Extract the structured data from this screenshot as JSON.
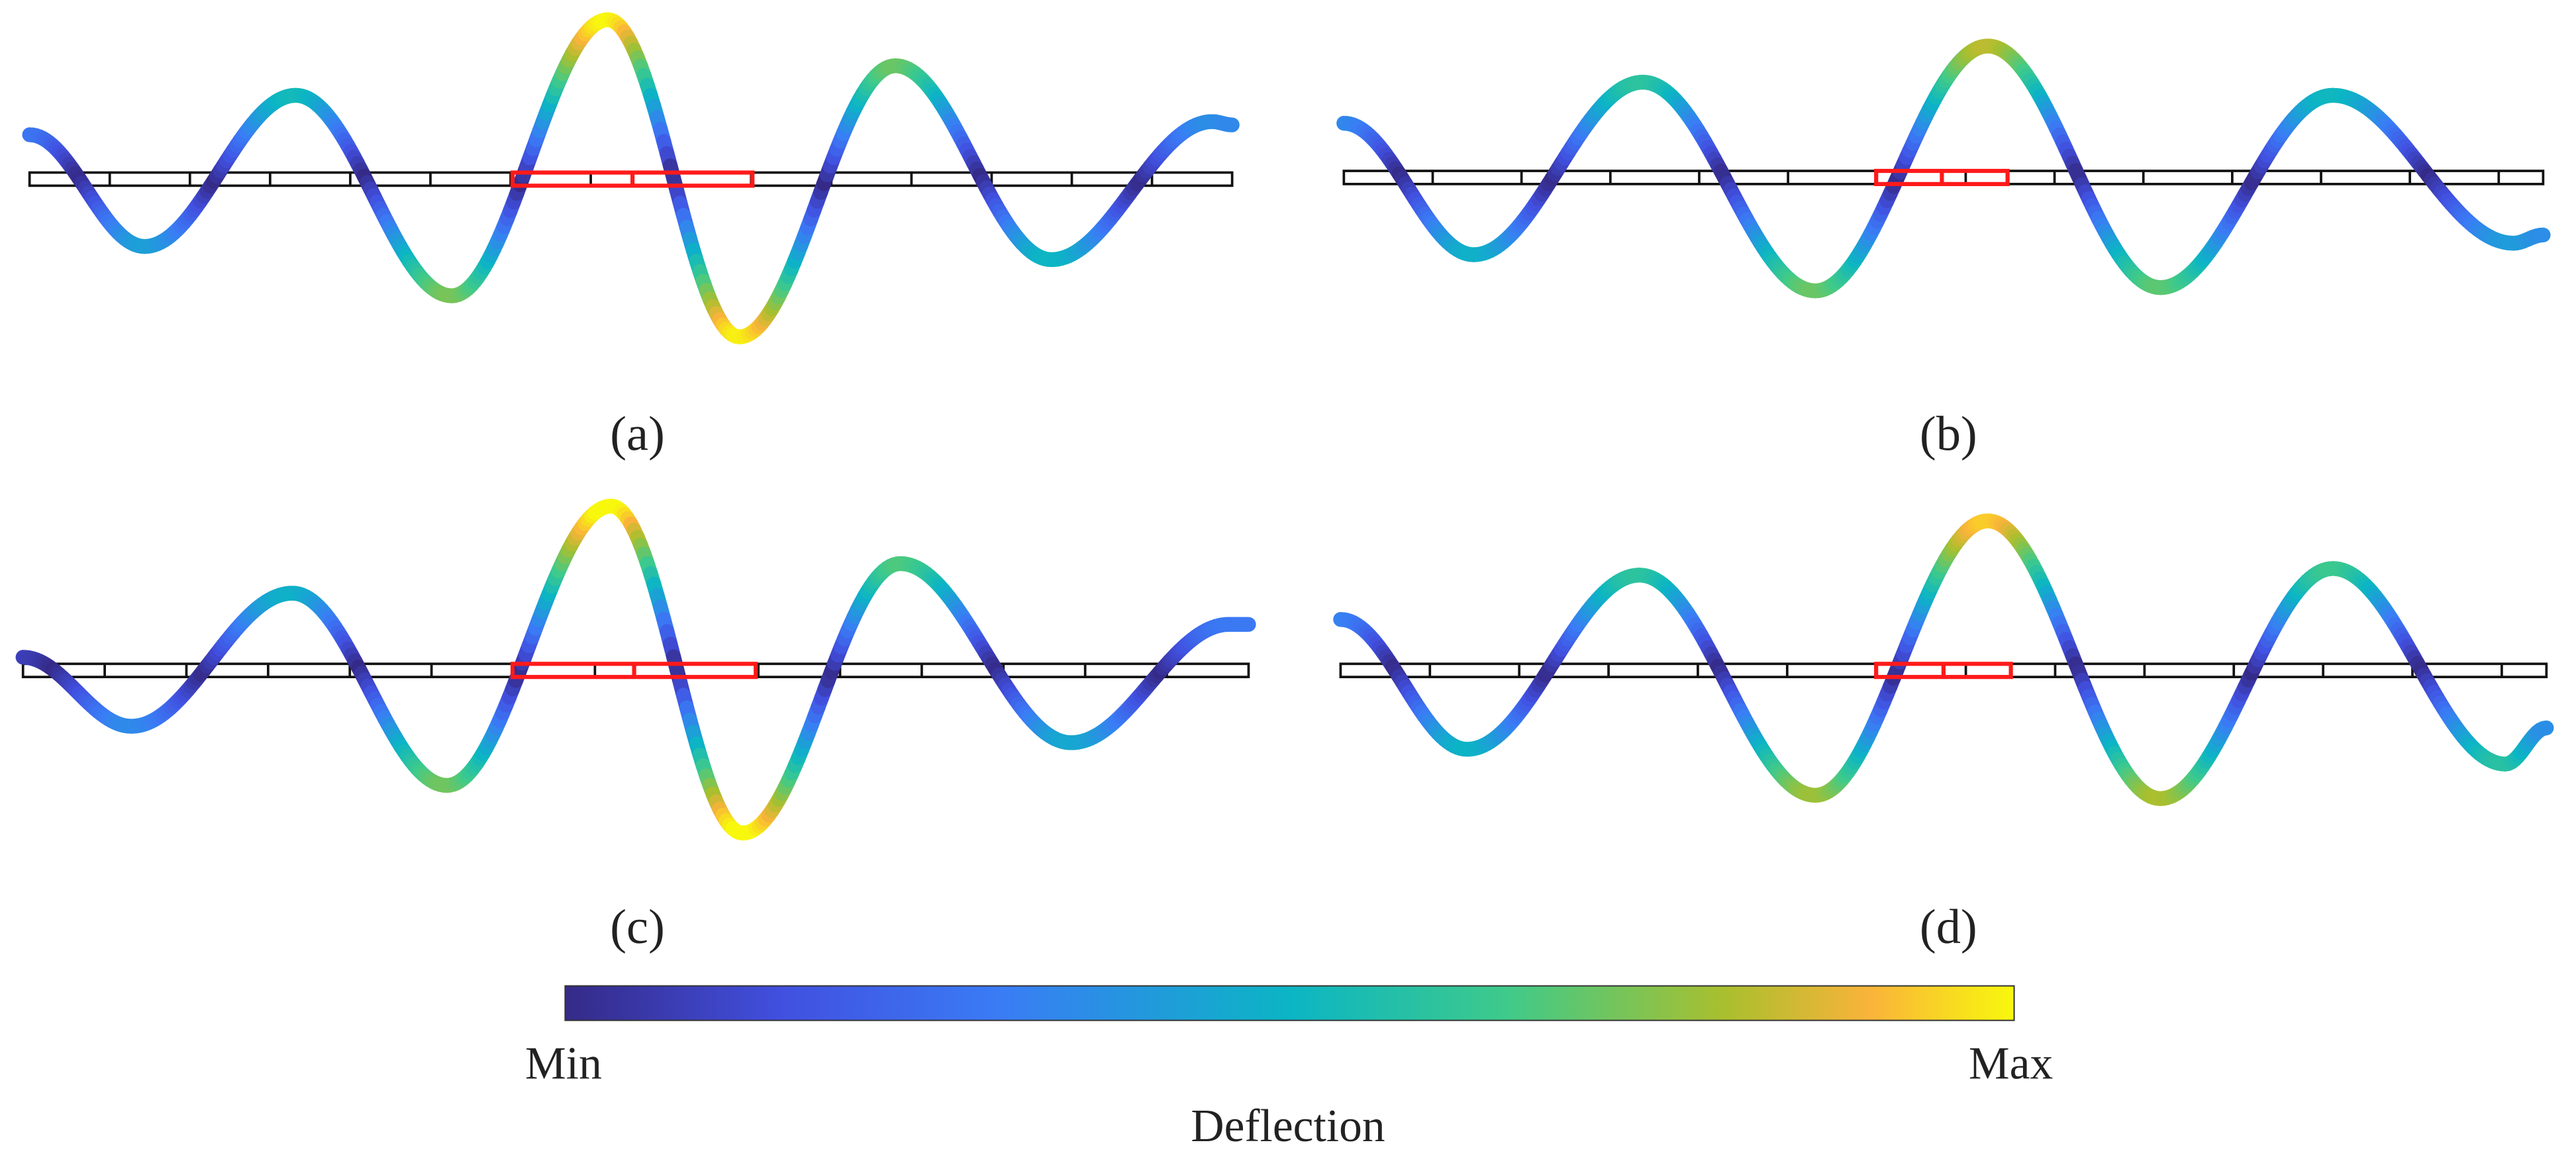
{
  "panels": [
    {
      "label": "(a)"
    },
    {
      "label": "(b)"
    },
    {
      "label": "(c)"
    },
    {
      "label": "(d)"
    }
  ],
  "colorbar": {
    "min_label": "Min",
    "max_label": "Max",
    "title": "Deflection"
  }
}
